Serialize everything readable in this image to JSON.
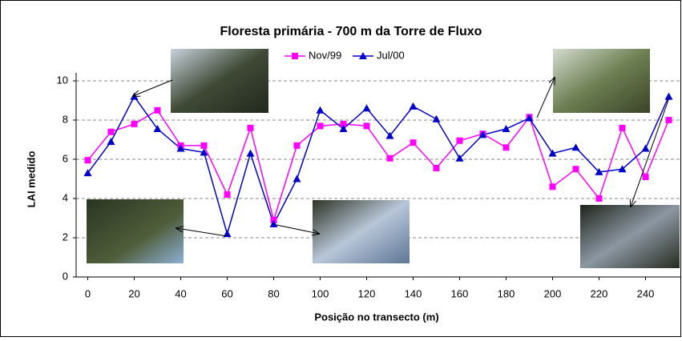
{
  "chart_data": {
    "type": "line",
    "title": "Floresta primária - 700 m da Torre de Fluxo",
    "x_label": "Posição no transecto (m)",
    "y_label": "LAI medido",
    "x": [
      0,
      10,
      20,
      30,
      40,
      50,
      60,
      70,
      80,
      90,
      100,
      110,
      120,
      130,
      140,
      150,
      160,
      170,
      180,
      190,
      200,
      210,
      220,
      230,
      240,
      250
    ],
    "series": [
      {
        "name": "Nov/99",
        "color": "#ff00ff",
        "marker": "square",
        "values": [
          5.95,
          7.4,
          7.8,
          8.5,
          6.7,
          6.7,
          4.2,
          7.6,
          2.9,
          6.7,
          7.7,
          7.8,
          7.7,
          6.05,
          6.85,
          5.55,
          6.95,
          7.3,
          6.6,
          8.15,
          4.6,
          5.5,
          4.0,
          7.6,
          5.1,
          8.0
        ]
      },
      {
        "name": "Jul/00",
        "color": "#0000cc",
        "marker": "triangle",
        "values": [
          5.3,
          6.9,
          9.2,
          7.55,
          6.55,
          6.35,
          2.2,
          6.3,
          2.7,
          5.0,
          8.5,
          7.55,
          8.6,
          7.2,
          8.7,
          8.05,
          6.05,
          7.25,
          7.55,
          8.1,
          6.3,
          6.6,
          5.35,
          5.5,
          6.55,
          9.2
        ]
      }
    ],
    "xlim": [
      -5,
      255
    ],
    "xticks": [
      0,
      20,
      40,
      60,
      80,
      100,
      120,
      140,
      160,
      180,
      200,
      220,
      240
    ],
    "ylim": [
      0,
      10
    ],
    "yticks": [
      0,
      2,
      4,
      6,
      8,
      10
    ],
    "grid": true,
    "legend": "top"
  }
}
